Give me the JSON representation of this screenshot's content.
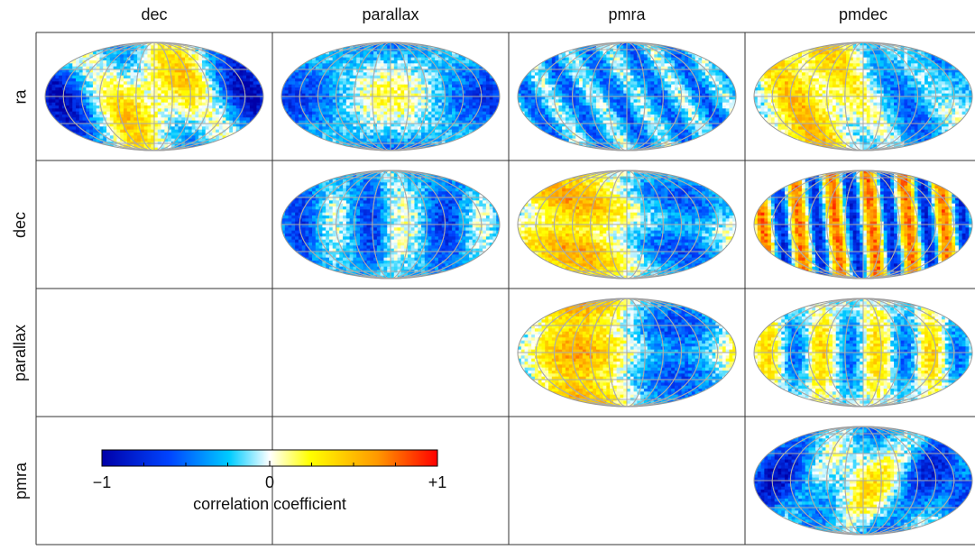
{
  "chart_data": {
    "type": "heatmap",
    "description_kind": "correlation-matrix-of-sky-maps",
    "projection": "Hammer-Aitoff all-sky",
    "grid": true,
    "column_labels": [
      "dec",
      "parallax",
      "pmra",
      "pmdec"
    ],
    "row_labels": [
      "ra",
      "dec",
      "parallax",
      "pmra"
    ],
    "panels": [
      {
        "row": "ra",
        "col": "dec",
        "pattern": "mixed: yellow/orange center lobes, cyan sides",
        "mean_sign": "mixed"
      },
      {
        "row": "ra",
        "col": "parallax",
        "pattern": "yellow center, cyan limbs",
        "mean_sign": "mixed"
      },
      {
        "row": "ra",
        "col": "pmra",
        "pattern": "mostly cyan with yellow streaks",
        "mean_sign": "negative"
      },
      {
        "row": "ra",
        "col": "pmdec",
        "pattern": "yellow left, cyan right",
        "mean_sign": "mixed"
      },
      {
        "row": "dec",
        "col": "parallax",
        "pattern": "blue/cyan bands, yellow center meridian",
        "mean_sign": "negative"
      },
      {
        "row": "dec",
        "col": "pmra",
        "pattern": "yellow left, cyan right",
        "mean_sign": "mixed"
      },
      {
        "row": "dec",
        "col": "pmdec",
        "pattern": "alternating blue and orange stripes",
        "mean_sign": "mixed"
      },
      {
        "row": "parallax",
        "col": "pmra",
        "pattern": "yellow left half, cyan right half",
        "mean_sign": "mixed"
      },
      {
        "row": "parallax",
        "col": "pmdec",
        "pattern": "cyan sides, yellow stripes",
        "mean_sign": "mixed"
      },
      {
        "row": "pmra",
        "col": "pmdec",
        "pattern": "cyan rim, yellow/orange center",
        "mean_sign": "mixed"
      }
    ],
    "colorbar": {
      "label": "correlation coefficient",
      "range": [
        -1,
        1
      ],
      "tick_labels": [
        "−1",
        "0",
        "+1"
      ],
      "colors": [
        "#0000a8",
        "#0044ff",
        "#00ccff",
        "#ffffff",
        "#ffff00",
        "#ff9900",
        "#ff0000"
      ]
    }
  }
}
